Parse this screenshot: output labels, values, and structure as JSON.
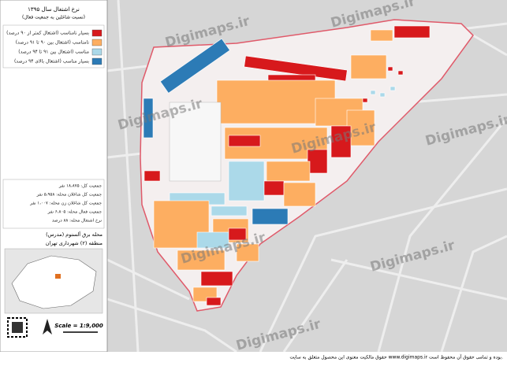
{
  "title": "نرخ اشتغال سال ۱۳۹۵",
  "subtitle": "(نسبت شاغلین به جمعیت فعال)",
  "legend": {
    "items": [
      {
        "label": "بسیار نامناسب (اشتغال کمتر از ۹۰ درصد)",
        "color": "#d7191c"
      },
      {
        "label": "نامناسب (اشتغال بین ۹۰ تا ۹۱ درصد)",
        "color": "#fdae61"
      },
      {
        "label": "مناسب (اشتغال بین ۹۱ تا ۹۴ درصد)",
        "color": "#abd9e9"
      },
      {
        "label": "بسیار مناسب (اشتغال بالای ۹۴ درصد)",
        "color": "#2c7bb6"
      }
    ]
  },
  "stats": [
    "جمعیت کل: ۱۸،۸۷۵ نفر",
    "جمعیت کل شاغلان محله: ۵،۹۵۸ نفر",
    "جمعیت کل شاغلان زن محله: ۱،۰۰۷ نفر",
    "جمعیت فعال محله: ۶،۸۰۵ نفر",
    "نرخ اشتغال محله: ۸۸ درصد"
  ],
  "place": {
    "name": "محله برق آلستوم (مدرس)",
    "district": "منطقه (۲) شهرداری تهران"
  },
  "scale": "Scale = 1:9,000",
  "watermark": "Digimaps.ir",
  "footer": "حقوق مالکیت معنوی این محصول متعلق به سایت www.digimaps.ir بوده و تمامی حقوق آن محفوظ است."
}
